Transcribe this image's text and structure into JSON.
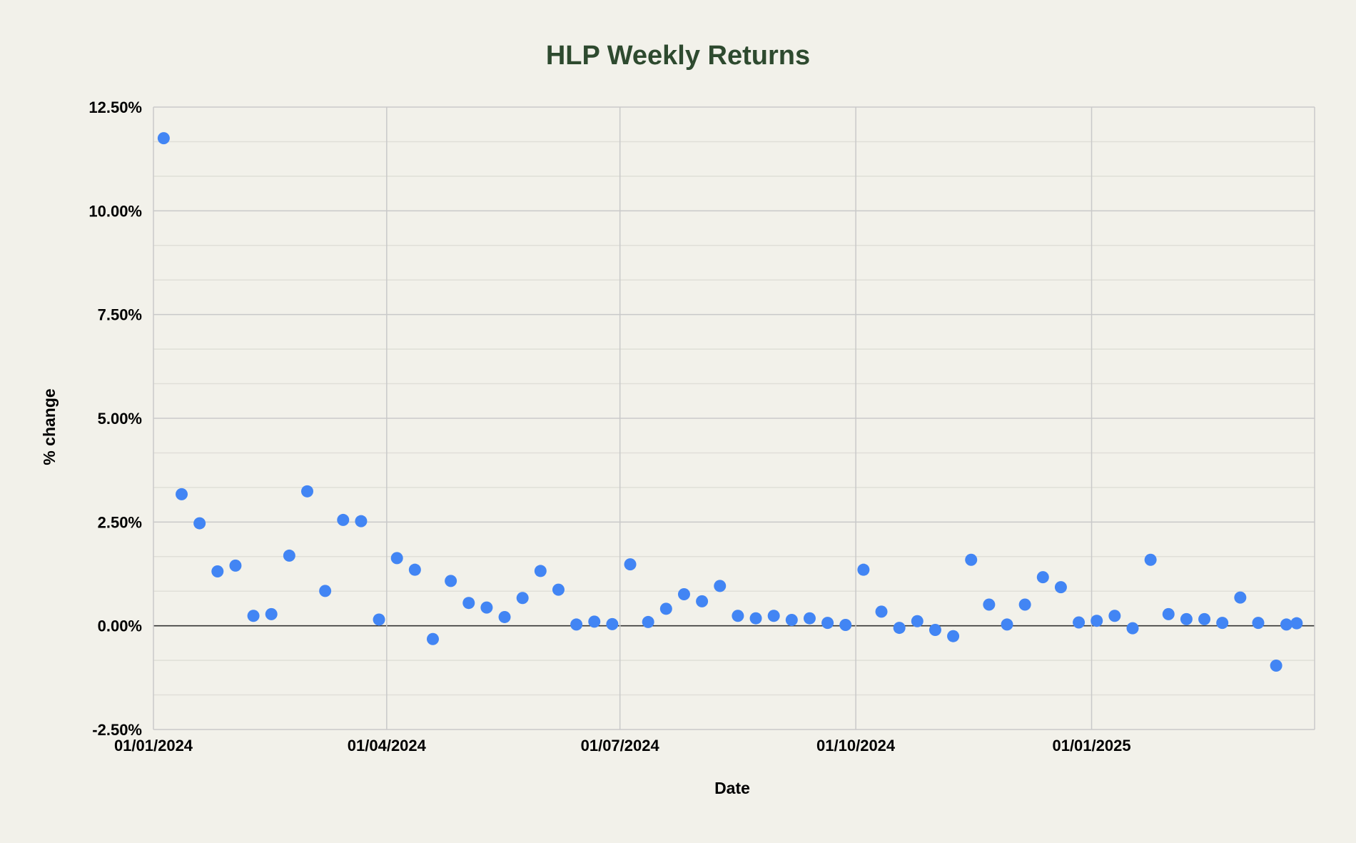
{
  "chart_data": {
    "type": "scatter",
    "title": "HLP Weekly Returns",
    "xlabel": "Date",
    "ylabel": "% change",
    "x_tick_labels": [
      "01/01/2024",
      "01/04/2024",
      "01/07/2024",
      "01/10/2024",
      "01/01/2025"
    ],
    "x_ticks": [
      "2024-01-01",
      "2024-04-01",
      "2024-07-01",
      "2024-10-01",
      "2025-01-01"
    ],
    "xlim": [
      "2024-01-01",
      "2025-03-29"
    ],
    "y_tick_labels": [
      "12.50%",
      "10.00%",
      "7.50%",
      "5.00%",
      "2.50%",
      "0.00%",
      "-2.50%"
    ],
    "y_ticks": [
      12.5,
      10,
      7.5,
      5,
      2.5,
      0,
      -2.5
    ],
    "ylim": [
      -2.5,
      12.5
    ],
    "grid": true,
    "legend": "none",
    "colors": {
      "background": "#f2f1ea",
      "title": "#2e4a2f",
      "point": "#4285f4",
      "grid": "#c9c9c9",
      "minor_grid": "#e0dfd8",
      "zero_line": "#333333"
    },
    "series": [
      {
        "points": [
          {
            "x": "2024-01-05",
            "y": 11.75
          },
          {
            "x": "2024-01-12",
            "y": 3.17
          },
          {
            "x": "2024-01-19",
            "y": 2.47
          },
          {
            "x": "2024-01-26",
            "y": 1.31
          },
          {
            "x": "2024-02-02",
            "y": 1.45
          },
          {
            "x": "2024-02-09",
            "y": 0.24
          },
          {
            "x": "2024-02-16",
            "y": 0.28
          },
          {
            "x": "2024-02-23",
            "y": 1.69
          },
          {
            "x": "2024-03-01",
            "y": 3.24
          },
          {
            "x": "2024-03-08",
            "y": 0.84
          },
          {
            "x": "2024-03-15",
            "y": 2.55
          },
          {
            "x": "2024-03-22",
            "y": 2.52
          },
          {
            "x": "2024-03-29",
            "y": 0.15
          },
          {
            "x": "2024-04-05",
            "y": 1.63
          },
          {
            "x": "2024-04-12",
            "y": 1.35
          },
          {
            "x": "2024-04-19",
            "y": -0.32
          },
          {
            "x": "2024-04-26",
            "y": 1.08
          },
          {
            "x": "2024-05-03",
            "y": 0.55
          },
          {
            "x": "2024-05-10",
            "y": 0.44
          },
          {
            "x": "2024-05-17",
            "y": 0.21
          },
          {
            "x": "2024-05-24",
            "y": 0.67
          },
          {
            "x": "2024-05-31",
            "y": 1.32
          },
          {
            "x": "2024-06-07",
            "y": 0.87
          },
          {
            "x": "2024-06-14",
            "y": 0.03
          },
          {
            "x": "2024-06-21",
            "y": 0.1
          },
          {
            "x": "2024-06-28",
            "y": 0.04
          },
          {
            "x": "2024-07-05",
            "y": 1.48
          },
          {
            "x": "2024-07-12",
            "y": 0.09
          },
          {
            "x": "2024-07-19",
            "y": 0.41
          },
          {
            "x": "2024-07-26",
            "y": 0.76
          },
          {
            "x": "2024-08-02",
            "y": 0.59
          },
          {
            "x": "2024-08-09",
            "y": 0.96
          },
          {
            "x": "2024-08-16",
            "y": 0.24
          },
          {
            "x": "2024-08-23",
            "y": 0.18
          },
          {
            "x": "2024-08-30",
            "y": 0.24
          },
          {
            "x": "2024-09-06",
            "y": 0.14
          },
          {
            "x": "2024-09-13",
            "y": 0.18
          },
          {
            "x": "2024-09-20",
            "y": 0.07
          },
          {
            "x": "2024-09-27",
            "y": 0.02
          },
          {
            "x": "2024-10-04",
            "y": 1.35
          },
          {
            "x": "2024-10-11",
            "y": 0.34
          },
          {
            "x": "2024-10-18",
            "y": -0.05
          },
          {
            "x": "2024-10-25",
            "y": 0.11
          },
          {
            "x": "2024-11-01",
            "y": -0.1
          },
          {
            "x": "2024-11-08",
            "y": -0.25
          },
          {
            "x": "2024-11-15",
            "y": 1.59
          },
          {
            "x": "2024-11-22",
            "y": 0.51
          },
          {
            "x": "2024-11-29",
            "y": 0.03
          },
          {
            "x": "2024-12-06",
            "y": 0.51
          },
          {
            "x": "2024-12-13",
            "y": 1.17
          },
          {
            "x": "2024-12-20",
            "y": 0.93
          },
          {
            "x": "2024-12-27",
            "y": 0.08
          },
          {
            "x": "2025-01-03",
            "y": 0.12
          },
          {
            "x": "2025-01-10",
            "y": 0.24
          },
          {
            "x": "2025-01-17",
            "y": -0.06
          },
          {
            "x": "2025-01-24",
            "y": 1.59
          },
          {
            "x": "2025-01-31",
            "y": 0.28
          },
          {
            "x": "2025-02-07",
            "y": 0.16
          },
          {
            "x": "2025-02-14",
            "y": 0.16
          },
          {
            "x": "2025-02-21",
            "y": 0.07
          },
          {
            "x": "2025-02-28",
            "y": 0.68
          },
          {
            "x": "2025-03-07",
            "y": 0.07
          },
          {
            "x": "2025-03-14",
            "y": -0.96
          },
          {
            "x": "2025-03-18",
            "y": 0.03
          },
          {
            "x": "2025-03-22",
            "y": 0.06
          }
        ]
      }
    ]
  }
}
